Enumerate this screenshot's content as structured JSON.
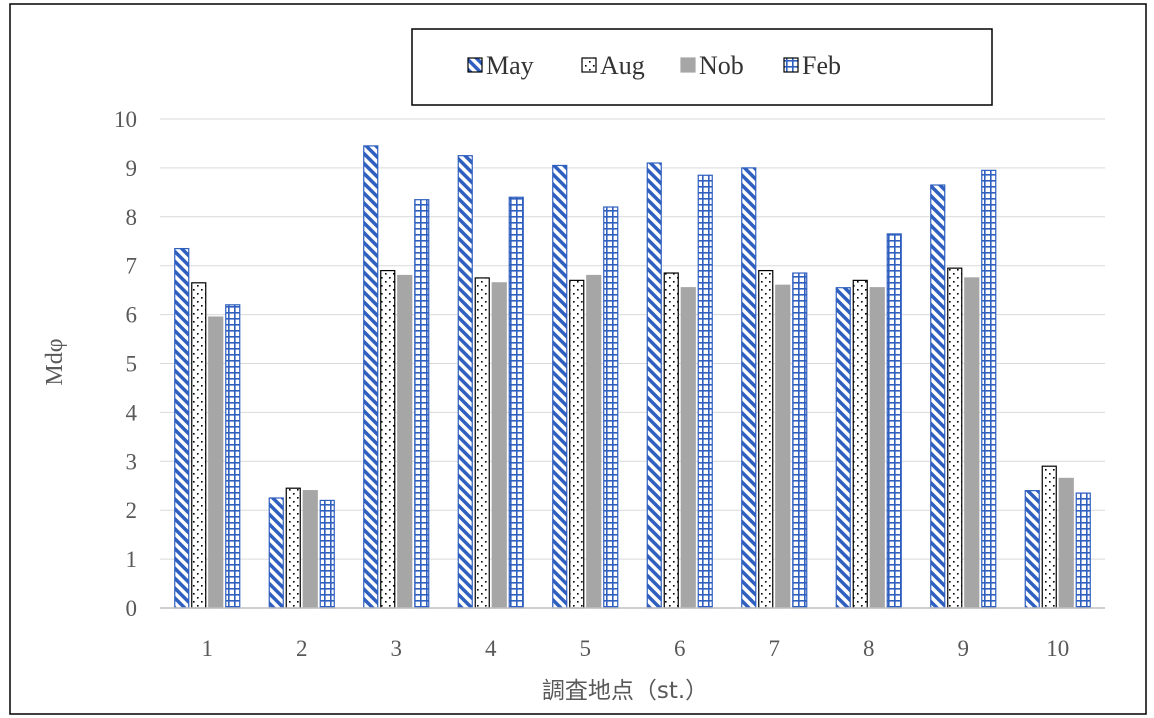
{
  "chart_data": {
    "type": "bar",
    "title": "",
    "xlabel": "調査地点（st.）",
    "ylabel": "Mdφ",
    "ylim": [
      0,
      10
    ],
    "y_ticks": [
      "0",
      "1",
      "2",
      "3",
      "4",
      "5",
      "6",
      "7",
      "8",
      "9",
      "10"
    ],
    "grid": true,
    "legend_position": "top-center",
    "categories": [
      "1",
      "2",
      "3",
      "4",
      "5",
      "6",
      "7",
      "8",
      "9",
      "10"
    ],
    "series": [
      {
        "name": "May",
        "pattern": "diagonal-stripes",
        "color": "#2f5fbf",
        "values": [
          7.35,
          2.25,
          9.45,
          9.25,
          9.05,
          9.1,
          9.0,
          6.55,
          8.65,
          2.4
        ]
      },
      {
        "name": "Aug",
        "pattern": "dotted",
        "color": "#000000",
        "values": [
          6.65,
          2.45,
          6.9,
          6.75,
          6.7,
          6.85,
          6.9,
          6.7,
          6.95,
          2.9
        ]
      },
      {
        "name": "Nob",
        "pattern": "solid-gray",
        "color": "#a6a6a6",
        "values": [
          5.95,
          2.4,
          6.8,
          6.65,
          6.8,
          6.55,
          6.6,
          6.55,
          6.75,
          2.65
        ]
      },
      {
        "name": "Feb",
        "pattern": "grid",
        "color": "#2f5fbf",
        "values": [
          6.2,
          2.2,
          8.35,
          8.4,
          8.2,
          8.85,
          6.85,
          7.65,
          8.95,
          2.35
        ]
      }
    ]
  }
}
